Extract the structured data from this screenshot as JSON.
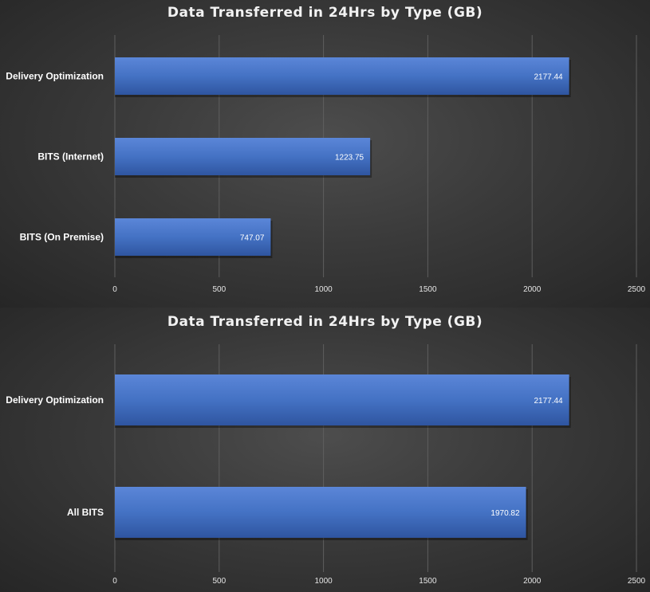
{
  "colors": {
    "bar": "#4472c4",
    "bar_light": "#5b86d8",
    "bar_dark": "#2f55a0"
  },
  "chart_data": [
    {
      "type": "bar",
      "orientation": "horizontal",
      "title": "Data Transferred in 24Hrs by Type (GB)",
      "categories": [
        "Delivery Optimization",
        "BITS (Internet)",
        "BITS (On Premise)"
      ],
      "values": [
        2177.44,
        1223.75,
        747.07
      ],
      "value_labels": [
        "2177.44",
        "1223.75",
        "747.07"
      ],
      "xlim": [
        0,
        2500
      ],
      "xticks": [
        0,
        500,
        1000,
        1500,
        2000,
        2500
      ],
      "grid": true,
      "legend": "none"
    },
    {
      "type": "bar",
      "orientation": "horizontal",
      "title": "Data Transferred in 24Hrs by Type (GB)",
      "categories": [
        "Delivery Optimization",
        "All BITS"
      ],
      "values": [
        2177.44,
        1970.82
      ],
      "value_labels": [
        "2177.44",
        "1970.82"
      ],
      "xlim": [
        0,
        2500
      ],
      "xticks": [
        0,
        500,
        1000,
        1500,
        2000,
        2500
      ],
      "grid": true,
      "legend": "none"
    }
  ]
}
